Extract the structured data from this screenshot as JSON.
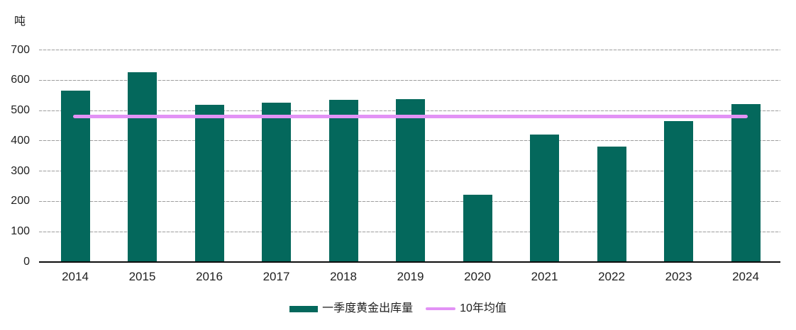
{
  "chart_data": {
    "type": "bar",
    "title": "",
    "ylabel": "吨",
    "xlabel": "",
    "categories": [
      "2014",
      "2015",
      "2016",
      "2017",
      "2018",
      "2019",
      "2020",
      "2021",
      "2022",
      "2023",
      "2024"
    ],
    "series": [
      {
        "name": "一季度黄金出库量",
        "type": "bar",
        "color": "#04685C",
        "values": [
          565,
          626,
          518,
          526,
          536,
          538,
          222,
          421,
          380,
          465,
          522
        ]
      },
      {
        "name": "10年均值",
        "type": "line",
        "color": "#E292F5",
        "values": [
          480,
          480,
          480,
          480,
          480,
          480,
          480,
          480,
          480,
          480,
          480
        ]
      }
    ],
    "ylim": [
      0,
      700
    ],
    "yticks": [
      0,
      100,
      200,
      300,
      400,
      500,
      600,
      700
    ],
    "grid": true,
    "legend_position": "bottom"
  },
  "colors": {
    "bar": "#04685C",
    "average_line": "#E292F5",
    "gridline": "#9E9E9E",
    "axis": "#0D0D0D",
    "text": "#1F1F1F",
    "background": "#FFFFFF"
  }
}
